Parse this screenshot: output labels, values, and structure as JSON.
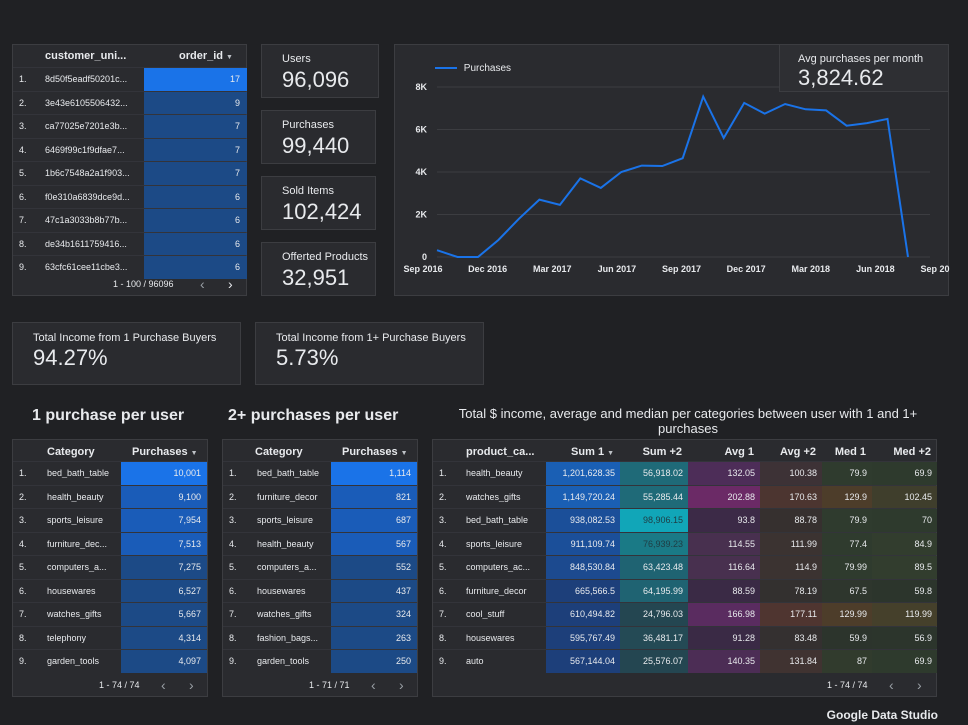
{
  "customers_table": {
    "col1": "customer_uni...",
    "col2": "order_id",
    "rows": [
      {
        "n": "1.",
        "id": "8d50f5eadf50201c...",
        "v": "17",
        "f": 1.0
      },
      {
        "n": "2.",
        "id": "3e43e6105506432...",
        "v": "9",
        "f": 0.53
      },
      {
        "n": "3.",
        "id": "ca77025e7201e3b...",
        "v": "7",
        "f": 0.41
      },
      {
        "n": "4.",
        "id": "6469f99c1f9dfae7...",
        "v": "7",
        "f": 0.41
      },
      {
        "n": "5.",
        "id": "1b6c7548a2a1f903...",
        "v": "7",
        "f": 0.41
      },
      {
        "n": "6.",
        "id": "f0e310a6839dce9d...",
        "v": "6",
        "f": 0.35
      },
      {
        "n": "7.",
        "id": "47c1a3033b8b77b...",
        "v": "6",
        "f": 0.35
      },
      {
        "n": "8.",
        "id": "de34b1611759416...",
        "v": "6",
        "f": 0.35
      },
      {
        "n": "9.",
        "id": "63cfc61cee11cbe3...",
        "v": "6",
        "f": 0.35
      }
    ],
    "pager": "1 - 100 / 96096"
  },
  "kpis": {
    "users": {
      "label": "Users",
      "value": "96,096"
    },
    "purchases": {
      "label": "Purchases",
      "value": "99,440"
    },
    "sold": {
      "label": "Sold Items",
      "value": "102,424"
    },
    "offered": {
      "label": "Offerted Products",
      "value": "32,951"
    },
    "avg": {
      "label": "Avg purchases per month",
      "value": "3,824.62"
    },
    "income1": {
      "label": "Total Income from 1 Purchase Buyers",
      "value": "94.27%"
    },
    "income2": {
      "label": "Total Income from 1+ Purchase Buyers",
      "value": "5.73%"
    }
  },
  "chart_data": {
    "type": "line",
    "series": [
      {
        "name": "Purchases",
        "values": [
          320,
          0,
          0,
          800,
          1800,
          2700,
          2450,
          3700,
          3250,
          4000,
          4300,
          4280,
          4650,
          7550,
          5600,
          7250,
          6750,
          7200,
          6950,
          6900,
          6180,
          6300,
          6500,
          0
        ]
      }
    ],
    "x_ticks": [
      "Sep 2016",
      "Dec 2016",
      "Mar 2017",
      "Jun 2017",
      "Sep 2017",
      "Dec 2017",
      "Mar 2018",
      "Jun 2018",
      "Sep 2018"
    ],
    "y_ticks": [
      "0",
      "2K",
      "4K",
      "6K",
      "8K"
    ],
    "ylim": [
      0,
      8000
    ],
    "color": "#1a73e8"
  },
  "titles": {
    "one": "1 purchase per user",
    "two": "2+ purchases per user",
    "three": "Total $ income, average and median per categories between user with 1 and 1+ purchases"
  },
  "cat1": {
    "h1": "Category",
    "h2": "Purchases",
    "rows": [
      {
        "n": "1.",
        "c": "bed_bath_table",
        "v": "10,001",
        "f": 1.0
      },
      {
        "n": "2.",
        "c": "health_beauty",
        "v": "9,100",
        "f": 0.91
      },
      {
        "n": "3.",
        "c": "sports_leisure",
        "v": "7,954",
        "f": 0.8
      },
      {
        "n": "4.",
        "c": "furniture_dec...",
        "v": "7,513",
        "f": 0.75
      },
      {
        "n": "5.",
        "c": "computers_a...",
        "v": "7,275",
        "f": 0.73
      },
      {
        "n": "6.",
        "c": "housewares",
        "v": "6,527",
        "f": 0.65
      },
      {
        "n": "7.",
        "c": "watches_gifts",
        "v": "5,667",
        "f": 0.57
      },
      {
        "n": "8.",
        "c": "telephony",
        "v": "4,314",
        "f": 0.43
      },
      {
        "n": "9.",
        "c": "garden_tools",
        "v": "4,097",
        "f": 0.41
      }
    ],
    "pager": "1 - 74 / 74"
  },
  "cat2": {
    "h1": "Category",
    "h2": "Purchases",
    "rows": [
      {
        "n": "1.",
        "c": "bed_bath_table",
        "v": "1,114",
        "f": 1.0
      },
      {
        "n": "2.",
        "c": "furniture_decor",
        "v": "821",
        "f": 0.74
      },
      {
        "n": "3.",
        "c": "sports_leisure",
        "v": "687",
        "f": 0.62
      },
      {
        "n": "4.",
        "c": "health_beauty",
        "v": "567",
        "f": 0.51
      },
      {
        "n": "5.",
        "c": "computers_a...",
        "v": "552",
        "f": 0.5
      },
      {
        "n": "6.",
        "c": "housewares",
        "v": "437",
        "f": 0.39
      },
      {
        "n": "7.",
        "c": "watches_gifts",
        "v": "324",
        "f": 0.29
      },
      {
        "n": "8.",
        "c": "fashion_bags...",
        "v": "263",
        "f": 0.24
      },
      {
        "n": "9.",
        "c": "garden_tools",
        "v": "250",
        "f": 0.22
      }
    ],
    "pager": "1 - 71 / 71"
  },
  "income_table": {
    "headers": [
      "product_ca...",
      "Sum 1",
      "Sum +2",
      "Avg 1",
      "Avg +2",
      "Med 1",
      "Med +2"
    ],
    "rows": [
      {
        "n": "1.",
        "c": "health_beauty",
        "s1": "1,201,628.35",
        "s2": "56,918.02",
        "a1": "132.05",
        "a2": "100.38",
        "m1": "79.9",
        "m2": "69.9"
      },
      {
        "n": "2.",
        "c": "watches_gifts",
        "s1": "1,149,720.24",
        "s2": "55,285.44",
        "a1": "202.88",
        "a2": "170.63",
        "m1": "129.9",
        "m2": "102.45"
      },
      {
        "n": "3.",
        "c": "bed_bath_table",
        "s1": "938,082.53",
        "s2": "98,906.15",
        "a1": "93.8",
        "a2": "88.78",
        "m1": "79.9",
        "m2": "70"
      },
      {
        "n": "4.",
        "c": "sports_leisure",
        "s1": "911,109.74",
        "s2": "76,939.23",
        "a1": "114.55",
        "a2": "111.99",
        "m1": "77.4",
        "m2": "84.9"
      },
      {
        "n": "5.",
        "c": "computers_ac...",
        "s1": "848,530.84",
        "s2": "63,423.48",
        "a1": "116.64",
        "a2": "114.9",
        "m1": "79.99",
        "m2": "89.5"
      },
      {
        "n": "6.",
        "c": "furniture_decor",
        "s1": "665,566.5",
        "s2": "64,195.99",
        "a1": "88.59",
        "a2": "78.19",
        "m1": "67.5",
        "m2": "59.8"
      },
      {
        "n": "7.",
        "c": "cool_stuff",
        "s1": "610,494.82",
        "s2": "24,796.03",
        "a1": "166.98",
        "a2": "177.11",
        "m1": "129.99",
        "m2": "119.99"
      },
      {
        "n": "8.",
        "c": "housewares",
        "s1": "595,767.49",
        "s2": "36,481.17",
        "a1": "91.28",
        "a2": "83.48",
        "m1": "59.9",
        "m2": "56.9"
      },
      {
        "n": "9.",
        "c": "auto",
        "s1": "567,144.04",
        "s2": "25,576.07",
        "a1": "140.35",
        "a2": "131.84",
        "m1": "87",
        "m2": "69.9"
      }
    ],
    "pager": "1 - 74 / 74"
  },
  "footer": "Google Data Studio"
}
